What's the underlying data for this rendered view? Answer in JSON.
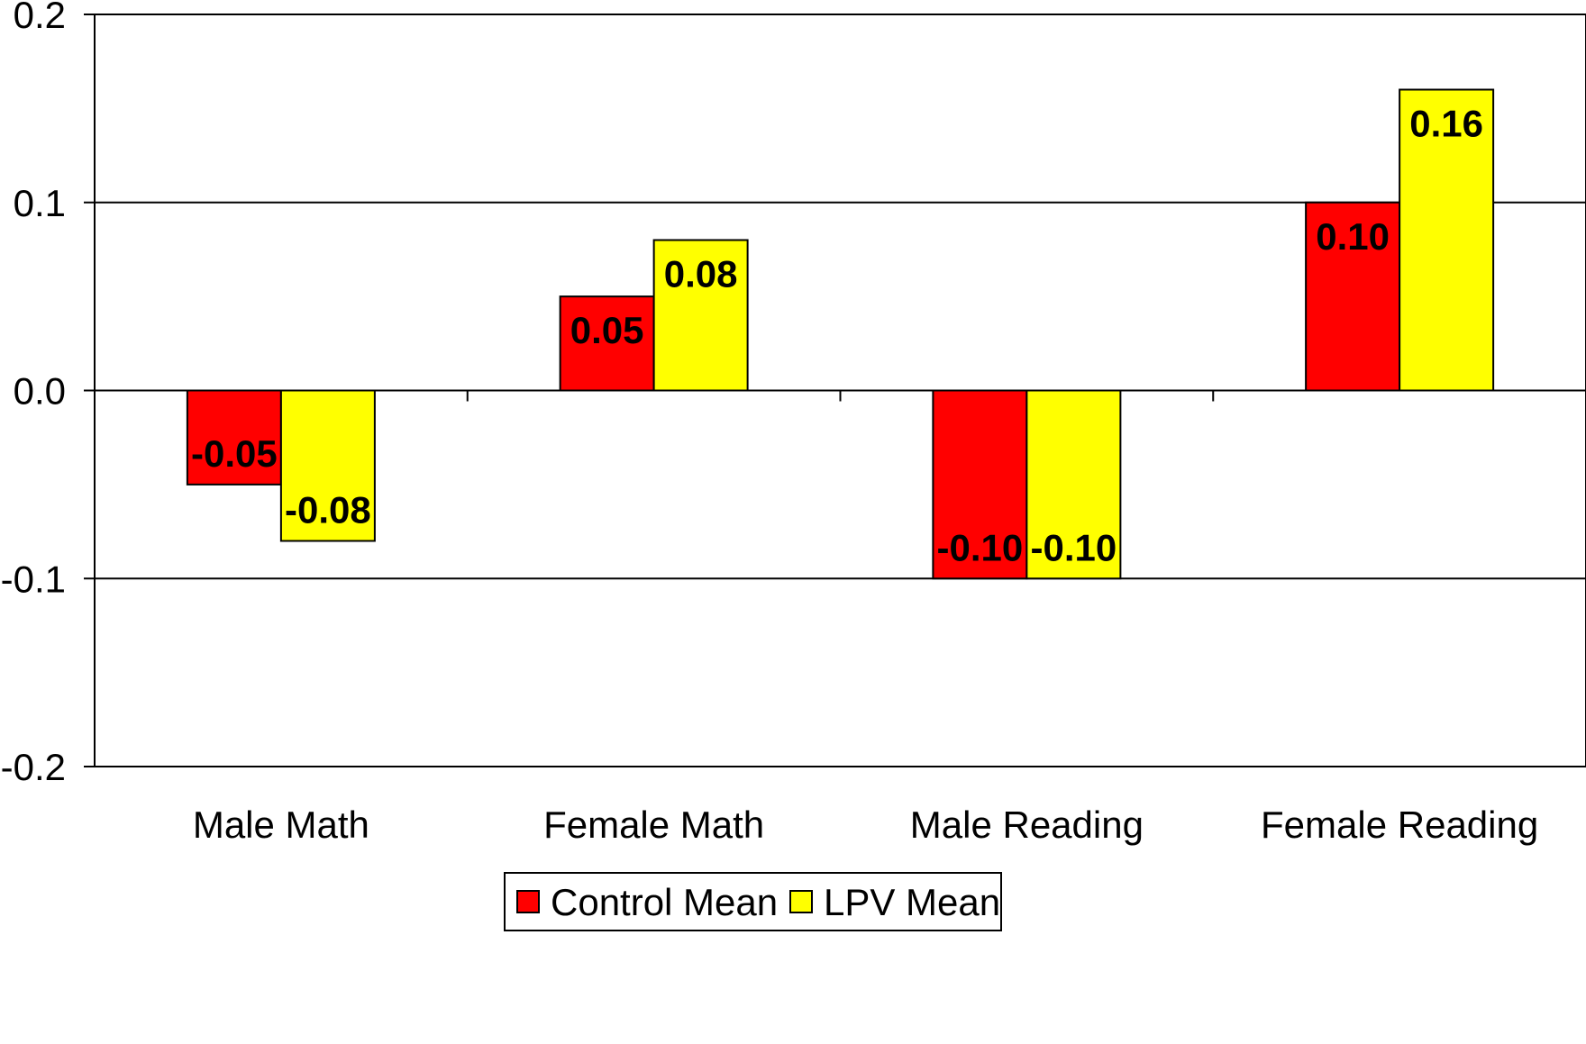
{
  "chart_data": {
    "type": "bar",
    "categories": [
      "Male Math",
      "Female Math",
      "Male Reading",
      "Female Reading"
    ],
    "series": [
      {
        "name": "Control Mean",
        "color": "#ff0000",
        "values": [
          -0.05,
          0.05,
          -0.1,
          0.1
        ],
        "labels": [
          "-0.05",
          "0.05",
          "-0.10",
          "0.10"
        ]
      },
      {
        "name": "LPV Mean",
        "color": "#ffff00",
        "values": [
          -0.08,
          0.08,
          -0.1,
          0.16
        ],
        "labels": [
          "-0.08",
          "0.08",
          "-0.10",
          "0.16"
        ]
      }
    ],
    "ylim": [
      -0.2,
      0.2
    ],
    "yticks": [
      0.2,
      0.1,
      0.0,
      -0.1,
      -0.2
    ],
    "ytick_labels": [
      "0.2",
      "0.1",
      "0.0",
      "-0.1",
      "-0.2"
    ],
    "grid": true,
    "legend": "bottom",
    "title": "",
    "xlabel": "",
    "ylabel": ""
  }
}
